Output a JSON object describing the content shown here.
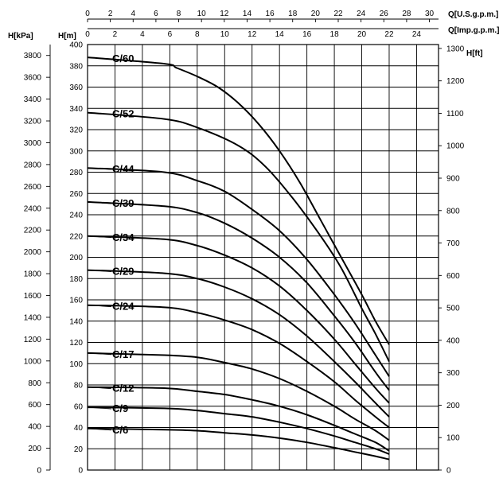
{
  "chart_data": {
    "type": "line",
    "title": "",
    "axes": {
      "y_left_outer": {
        "label": "H[kPa]",
        "range": [
          0,
          3900
        ],
        "ticks": [
          0,
          200,
          400,
          600,
          800,
          1000,
          1200,
          1400,
          1600,
          1800,
          2000,
          2200,
          2400,
          2600,
          2800,
          3000,
          3200,
          3400,
          3600,
          3800
        ]
      },
      "y_left_inner": {
        "label": "H[m]",
        "range": [
          0,
          400
        ],
        "ticks": [
          0,
          20,
          40,
          60,
          80,
          100,
          120,
          140,
          160,
          180,
          200,
          220,
          240,
          260,
          280,
          300,
          320,
          340,
          360,
          380,
          400
        ]
      },
      "y_right": {
        "label": "H[ft]",
        "range": [
          0,
          1312
        ],
        "ticks": [
          0,
          100,
          200,
          300,
          400,
          500,
          600,
          700,
          800,
          900,
          1000,
          1100,
          1200,
          1300
        ]
      },
      "x_top_usgpm": {
        "label": "Q[U.S.g.p.m.]",
        "range": [
          0,
          30.8
        ],
        "ticks": [
          0,
          2,
          4,
          6,
          8,
          10,
          12,
          14,
          16,
          18,
          20,
          22,
          24,
          26,
          28,
          30
        ]
      },
      "x_top_impgpm": {
        "label": "Q[Imp.g.p.m.]",
        "range": [
          0,
          25.6
        ],
        "ticks": [
          0,
          2,
          4,
          6,
          8,
          10,
          12,
          14,
          16,
          18,
          20,
          22,
          24
        ]
      }
    },
    "x_unit": "Imp.g.p.m.",
    "y_unit": "m",
    "grid": true,
    "series": [
      {
        "name": "C/60",
        "x": [
          0,
          5.6,
          6.5,
          8,
          9.5,
          11,
          12.5,
          14,
          15.5,
          17,
          18.5,
          20,
          21,
          22
        ],
        "y": [
          388,
          382,
          378,
          370,
          360,
          345,
          325,
          300,
          270,
          235,
          200,
          165,
          140,
          118
        ]
      },
      {
        "name": "C/52",
        "x": [
          0,
          5.6,
          8,
          11,
          13,
          15,
          17,
          18.5,
          20,
          21,
          22
        ],
        "y": [
          336,
          330,
          322,
          305,
          285,
          255,
          220,
          190,
          152,
          128,
          102
        ]
      },
      {
        "name": "C/44",
        "x": [
          0,
          5.6,
          8,
          10,
          12,
          14,
          16,
          18,
          19.5,
          21,
          22
        ],
        "y": [
          284,
          280,
          272,
          262,
          245,
          225,
          198,
          165,
          138,
          108,
          88
        ]
      },
      {
        "name": "C/39",
        "x": [
          0,
          5.6,
          8,
          10,
          12,
          14,
          16,
          18,
          19.5,
          21,
          22
        ],
        "y": [
          252,
          248,
          242,
          232,
          218,
          200,
          176,
          145,
          120,
          92,
          75
        ]
      },
      {
        "name": "C/34",
        "x": [
          0,
          5.6,
          8,
          10,
          12,
          14,
          16,
          18,
          19.5,
          21,
          22
        ],
        "y": [
          220,
          217,
          211,
          202,
          190,
          173,
          150,
          123,
          100,
          77,
          63
        ]
      },
      {
        "name": "C/29",
        "x": [
          0,
          5.6,
          8,
          10,
          12,
          14,
          16,
          18,
          19.5,
          21,
          22
        ],
        "y": [
          188,
          185,
          180,
          172,
          161,
          146,
          126,
          102,
          83,
          63,
          50
        ]
      },
      {
        "name": "C/24",
        "x": [
          0,
          5.6,
          8,
          10,
          12,
          14,
          16,
          18,
          19.5,
          21,
          22
        ],
        "y": [
          155,
          153,
          148,
          141,
          132,
          119,
          102,
          83,
          66,
          50,
          40
        ]
      },
      {
        "name": "C/17",
        "x": [
          0,
          5.6,
          8,
          10,
          12,
          14,
          16,
          18,
          19.5,
          21,
          22
        ],
        "y": [
          110,
          108,
          106,
          101,
          95,
          86,
          74,
          60,
          48,
          37,
          28
        ]
      },
      {
        "name": "C/12",
        "x": [
          0,
          5.6,
          8,
          10,
          12,
          14,
          16,
          18,
          19.5,
          21,
          22
        ],
        "y": [
          78,
          77,
          74,
          71,
          66,
          60,
          52,
          42,
          34,
          26,
          18
        ]
      },
      {
        "name": "C/9",
        "x": [
          0,
          5.6,
          8,
          10,
          12,
          14,
          16,
          18,
          19.5,
          21,
          22
        ],
        "y": [
          59,
          58,
          56,
          53,
          50,
          45,
          39,
          32,
          26,
          20,
          15
        ]
      },
      {
        "name": "C/6",
        "x": [
          0,
          5.6,
          8,
          10,
          12,
          14,
          16,
          18,
          19.5,
          21,
          22
        ],
        "y": [
          39,
          38,
          37,
          35,
          33,
          30,
          26,
          21,
          17,
          13,
          10
        ]
      }
    ]
  }
}
